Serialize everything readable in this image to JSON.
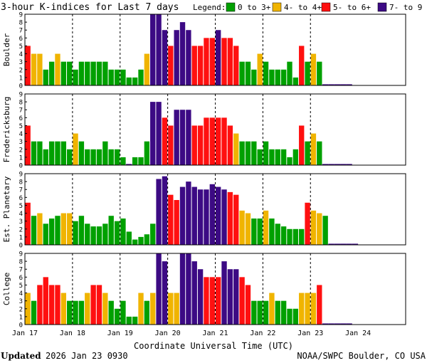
{
  "title": "3-hour K-indices for Last 7 days",
  "legend": {
    "label": "Legend:",
    "items": [
      {
        "text": "0 to 3+",
        "color": "#00a000"
      },
      {
        "text": "4- to 4+",
        "color": "#f0b400"
      },
      {
        "text": "5- to 6+",
        "color": "#ff1010"
      },
      {
        "text": "7- to 9",
        "color": "#3c0a84"
      }
    ]
  },
  "footer": {
    "updated_label": "Updated",
    "updated_value": "2026 Jan 23 0930",
    "credit": "NOAA/SWPC Boulder, CO USA"
  },
  "chart_data": {
    "type": "bar",
    "xlabel": "Coordinate Universal Time (UTC)",
    "ylim": [
      0,
      9
    ],
    "yticks": [
      "0",
      "1",
      "2",
      "3",
      "4",
      "5",
      "6",
      "7",
      "8",
      "9"
    ],
    "xticks": [
      "Jan 17",
      "Jan 18",
      "Jan 19",
      "Jan 20",
      "Jan 21",
      "Jan 22",
      "Jan 23",
      "Jan 24"
    ],
    "total_slots": 64,
    "color_scale": [
      {
        "max": 3.7,
        "color": "#00a000"
      },
      {
        "max": 4.7,
        "color": "#f0b400"
      },
      {
        "max": 6.7,
        "color": "#ff1010"
      },
      {
        "max": 9.0,
        "color": "#3c0a84"
      }
    ],
    "series": [
      {
        "name": "Boulder",
        "values": [
          5,
          4,
          4,
          2,
          3,
          4,
          3,
          3,
          2,
          3,
          3,
          3,
          3,
          3,
          2,
          2,
          2,
          1,
          1,
          2,
          4,
          9,
          9,
          7,
          5,
          7,
          8,
          7,
          5,
          5,
          6,
          6,
          7,
          6,
          6,
          5,
          3,
          3,
          2,
          4,
          3,
          2,
          2,
          2,
          3,
          1,
          5,
          3,
          4,
          3,
          0,
          0,
          0,
          0,
          0
        ]
      },
      {
        "name": "Fredericksburg",
        "values": [
          5,
          3,
          3,
          2,
          3,
          3,
          3,
          2,
          4,
          3,
          2,
          2,
          2,
          3,
          2,
          2,
          1,
          0,
          1,
          1,
          3,
          8,
          8,
          6,
          5,
          7,
          7,
          7,
          5,
          5,
          6,
          6,
          6,
          6,
          5,
          4,
          3,
          3,
          3,
          2,
          3,
          2,
          2,
          2,
          1,
          2,
          5,
          3,
          4,
          3,
          0,
          0,
          0,
          0,
          0
        ]
      },
      {
        "name": "Est. Planetary",
        "values": [
          5.33,
          3.67,
          4,
          2.67,
          3.33,
          3.67,
          4,
          4,
          3,
          3.67,
          2.67,
          2.33,
          2.33,
          2.67,
          3.67,
          3,
          3.33,
          1.67,
          0.67,
          1,
          1.33,
          2.67,
          8.33,
          8.67,
          6.33,
          5.67,
          7.33,
          8,
          7.33,
          7,
          7,
          7.67,
          7.33,
          7,
          6.67,
          6.33,
          4.33,
          4,
          3.33,
          3.33,
          4.33,
          3.33,
          2.67,
          2.33,
          2,
          2,
          2,
          5.33,
          4.33,
          4,
          3.67,
          0,
          0,
          0,
          0,
          0
        ]
      },
      {
        "name": "College",
        "values": [
          4,
          3,
          5,
          6,
          5,
          5,
          4,
          3,
          3,
          3,
          4,
          5,
          5,
          4,
          3,
          2,
          3,
          1,
          1,
          4,
          3,
          4,
          9,
          8,
          4,
          4,
          9,
          9,
          8,
          7,
          6,
          6,
          6,
          8,
          7,
          7,
          6,
          5,
          3,
          3,
          3,
          4,
          3,
          3,
          2,
          2,
          4,
          4,
          4,
          5,
          0,
          0,
          0,
          0,
          0
        ]
      }
    ]
  }
}
